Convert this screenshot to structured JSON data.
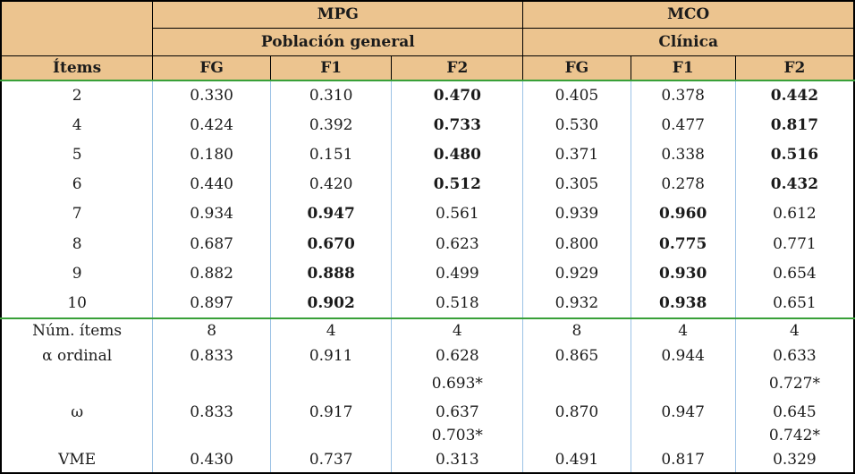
{
  "table": {
    "corner_label": "",
    "top_headers": [
      {
        "label": "MPG"
      },
      {
        "label": "MCO"
      }
    ],
    "sub_headers": [
      {
        "label": "Población general"
      },
      {
        "label": "Clínica"
      }
    ],
    "col_headers": [
      "Ítems",
      "FG",
      "F1",
      "F2",
      "FG",
      "F1",
      "F2"
    ],
    "col_widths_pct": [
      17.8,
      13.8,
      14.2,
      15.4,
      12.6,
      12.3,
      13.9
    ],
    "rows": [
      {
        "item": "2",
        "values": [
          "0.330",
          "0.310",
          "0.470",
          "0.405",
          "0.378",
          "0.442"
        ],
        "bold_indices": [
          2,
          5
        ]
      },
      {
        "item": "4",
        "values": [
          "0.424",
          "0.392",
          "0.733",
          "0.530",
          "0.477",
          "0.817"
        ],
        "bold_indices": [
          2,
          5
        ]
      },
      {
        "item": "5",
        "values": [
          "0.180",
          "0.151",
          "0.480",
          "0.371",
          "0.338",
          "0.516"
        ],
        "bold_indices": [
          2,
          5
        ]
      },
      {
        "item": "6",
        "values": [
          "0.440",
          "0.420",
          "0.512",
          "0.305",
          "0.278",
          "0.432"
        ],
        "bold_indices": [
          2,
          5
        ]
      },
      {
        "item": "7",
        "values": [
          "0.934",
          "0.947",
          "0.561",
          "0.939",
          "0.960",
          "0.612"
        ],
        "bold_indices": [
          1,
          4
        ]
      },
      {
        "item": "8",
        "values": [
          "0.687",
          "0.670",
          "0.623",
          "0.800",
          "0.775",
          "0.771"
        ],
        "bold_indices": [
          1,
          4
        ]
      },
      {
        "item": "9",
        "values": [
          "0.882",
          "0.888",
          "0.499",
          "0.929",
          "0.930",
          "0.654"
        ],
        "bold_indices": [
          1,
          4
        ]
      },
      {
        "item": "10",
        "values": [
          "0.897",
          "0.902",
          "0.518",
          "0.932",
          "0.938",
          "0.651"
        ],
        "bold_indices": [
          1,
          4
        ]
      }
    ],
    "summary": [
      {
        "label": "Núm. ítems",
        "values": [
          "8",
          "4",
          "4",
          "8",
          "4",
          "4"
        ]
      },
      {
        "label": "α ordinal",
        "values": [
          "0.833",
          "0.911",
          "0.628",
          "0.865",
          "0.944",
          "0.633"
        ],
        "values2": [
          "",
          "",
          "0.693*",
          "",
          "",
          "0.727*"
        ]
      },
      {
        "label": "ω",
        "values": [
          "0.833",
          "0.917",
          "0.637",
          "0.870",
          "0.947",
          "0.645"
        ],
        "values2": [
          "",
          "",
          "0.703*",
          "",
          "",
          "0.742*"
        ]
      },
      {
        "label": "VME",
        "values": [
          "0.430",
          "0.737",
          "0.313",
          "0.491",
          "0.817",
          "0.329"
        ]
      }
    ],
    "colors": {
      "header_bg": "#ecc48f",
      "green_divider": "#38a038",
      "blue_divider": "#9cc2e5",
      "outer_border": "#000000",
      "text": "#1b1b1b"
    }
  }
}
